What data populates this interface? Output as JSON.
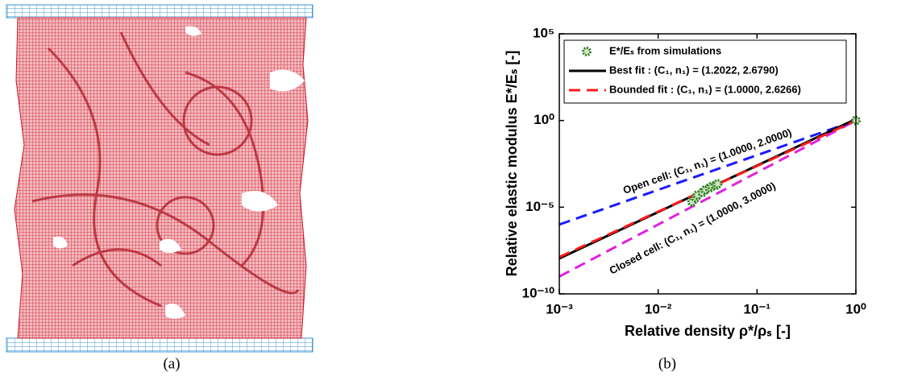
{
  "captions": [
    "(a)",
    "(b)"
  ],
  "chart_data": {
    "type": "line",
    "x_label": "Relative density  ρ*/ρₛ [-]",
    "y_label": "Relative elastic modulus  E*/Eₛ [-]",
    "log_x": true,
    "log_y": true,
    "xlim": [
      0.001,
      1
    ],
    "ylim": [
      1e-10,
      100000
    ],
    "xticks": [
      {
        "value": 0.001,
        "label": "10⁻³"
      },
      {
        "value": 0.01,
        "label": "10⁻²"
      },
      {
        "value": 0.1,
        "label": "10⁻¹"
      },
      {
        "value": 1,
        "label": "10⁰"
      }
    ],
    "yticks": [
      {
        "value": 1e-10,
        "label": "10⁻¹⁰"
      },
      {
        "value": 1e-05,
        "label": "10⁻⁵"
      },
      {
        "value": 1,
        "label": "10⁰"
      },
      {
        "value": 100000,
        "label": "10⁵"
      }
    ],
    "legend": "upper-left",
    "series": [
      {
        "name": "E*/Eₛ from simulations",
        "type": "scatter",
        "color": "#2f7d1f",
        "x": [
          0.022,
          0.024,
          0.025,
          0.028,
          0.03,
          0.033,
          0.035,
          0.038,
          0.04,
          1
        ],
        "values": [
          2e-05,
          3.5e-05,
          5e-05,
          7e-05,
          0.0001,
          0.00013,
          0.00016,
          0.00018,
          0.00022,
          1
        ]
      },
      {
        "name": "Best fit : (C₁, n₁) = (1.2022, 2.6790)",
        "type": "line",
        "color": "#000000",
        "dash": "solid",
        "x": [
          0.001,
          1
        ],
        "values": [
          1.1e-08,
          1.2022
        ]
      },
      {
        "name": "Bounded fit : (C₁, n₁) = (1.0000, 2.6266)",
        "type": "line",
        "color": "#ff1a1a",
        "dash": "dashed",
        "x": [
          0.001,
          1
        ],
        "values": [
          1.32e-08,
          1
        ]
      }
    ],
    "reference_lines": [
      {
        "label": "Open cell: (C₁, n₁) = (1.0000, 2.0000)",
        "color": "#1a1aff",
        "dash": "dashed",
        "x": [
          0.001,
          1
        ],
        "values": [
          1e-06,
          1
        ]
      },
      {
        "label": "Closed cell: (C₁, n₁) = (1.0000, 3.0000)",
        "color": "#e21ee2",
        "dash": "dashed",
        "x": [
          0.001,
          1
        ],
        "values": [
          1e-09,
          1
        ]
      }
    ]
  }
}
